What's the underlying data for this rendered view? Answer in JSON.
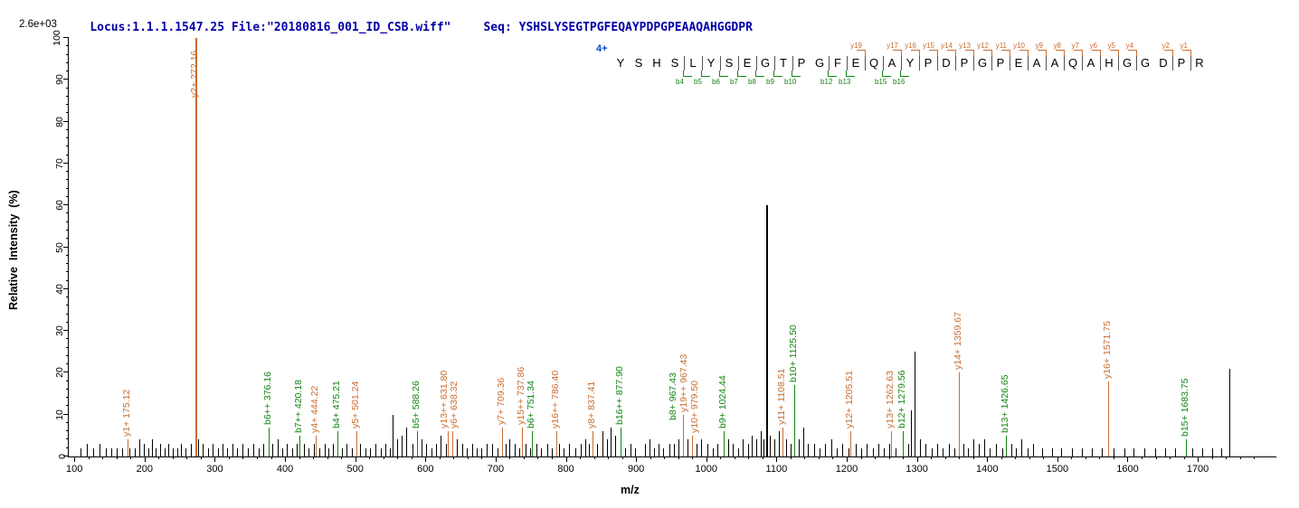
{
  "header": {
    "locus_file": "Locus:1.1.1.1547.25 File:\"20180816_001_ID_CSB.wiff\"",
    "seq_label": "Seq:",
    "sequence": "YSHSLYSEGTPGFEQAYPDPGPEAAQAHGGDPR"
  },
  "chart_data": {
    "type": "bar",
    "xlabel": "m/z",
    "ylabel": "Relative  Intensity  (%)",
    "y_max_label": "2.6e+03",
    "xlim": [
      92,
      1812
    ],
    "ylim": [
      0,
      100
    ],
    "x_ticks": [
      100,
      200,
      300,
      400,
      500,
      600,
      700,
      800,
      900,
      1000,
      1100,
      1200,
      1300,
      1400,
      1500,
      1600,
      1700
    ],
    "y_ticks": [
      0,
      10,
      20,
      30,
      40,
      50,
      60,
      70,
      80,
      90,
      100
    ],
    "colors": {
      "y_ion": "#c86e32",
      "b_ion": "#148514",
      "noise": "#000000",
      "header": "#0000a8",
      "charge": "#0044d0"
    },
    "annotation": {
      "charge": "4+",
      "residues": [
        {
          "aa": "Y"
        },
        {
          "aa": "S"
        },
        {
          "aa": "H"
        },
        {
          "aa": "S",
          "b": "b4"
        },
        {
          "aa": "L",
          "b": "b5"
        },
        {
          "aa": "Y",
          "b": "b6"
        },
        {
          "aa": "S",
          "b": "b7"
        },
        {
          "aa": "E",
          "b": "b8"
        },
        {
          "aa": "G",
          "b": "b9"
        },
        {
          "aa": "T",
          "b": "b10"
        },
        {
          "aa": "P"
        },
        {
          "aa": "G",
          "b": "b12"
        },
        {
          "aa": "F",
          "b": "b13"
        },
        {
          "aa": "E",
          "y": "y19"
        },
        {
          "aa": "Q",
          "b": "b15"
        },
        {
          "aa": "A",
          "b": "b16",
          "y": "y17"
        },
        {
          "aa": "Y",
          "y": "y16"
        },
        {
          "aa": "P",
          "y": "y15"
        },
        {
          "aa": "D",
          "y": "y14"
        },
        {
          "aa": "P",
          "y": "y13"
        },
        {
          "aa": "G",
          "y": "y12"
        },
        {
          "aa": "P",
          "y": "y11"
        },
        {
          "aa": "E",
          "y": "y10"
        },
        {
          "aa": "A",
          "y": "y9"
        },
        {
          "aa": "A",
          "y": "y8"
        },
        {
          "aa": "Q",
          "y": "y7"
        },
        {
          "aa": "A",
          "y": "y6"
        },
        {
          "aa": "H",
          "y": "y5"
        },
        {
          "aa": "G",
          "y": "y4"
        },
        {
          "aa": "G"
        },
        {
          "aa": "D",
          "y": "y2"
        },
        {
          "aa": "P",
          "y": "y1"
        },
        {
          "aa": "R"
        }
      ]
    },
    "labeled_peaks": [
      {
        "ion": "y",
        "label": "y1+ 175.12",
        "mz": 175.12,
        "pct": 4
      },
      {
        "ion": "y",
        "label": "y2+ 272.16",
        "mz": 272.16,
        "pct": 100
      },
      {
        "ion": "b",
        "label": "b6++ 376.16",
        "mz": 376.16,
        "pct": 7
      },
      {
        "ion": "b",
        "label": "b7++ 420.18",
        "mz": 420.18,
        "pct": 5
      },
      {
        "ion": "y",
        "label": "y4+ 444.22",
        "mz": 444.22,
        "pct": 5
      },
      {
        "ion": "b",
        "label": "b4+ 475.21",
        "mz": 475.21,
        "pct": 6
      },
      {
        "ion": "y",
        "label": "y5+ 501.24",
        "mz": 501.24,
        "pct": 6
      },
      {
        "ion": "b",
        "label": "b5+ 588.26",
        "mz": 588.26,
        "pct": 6
      },
      {
        "ion": "y",
        "label": "y13++ 631.80",
        "mz": 631.8,
        "pct": 6,
        "dx": -3
      },
      {
        "ion": "y",
        "label": "y6+ 638.32",
        "mz": 638.32,
        "pct": 6,
        "dx": 3
      },
      {
        "ion": "y",
        "label": "y7+ 709.36",
        "mz": 709.36,
        "pct": 7
      },
      {
        "ion": "y",
        "label": "y15++ 737.86",
        "mz": 737.86,
        "pct": 7
      },
      {
        "ion": "b",
        "label": "b6+ 751.34",
        "mz": 751.34,
        "pct": 6
      },
      {
        "ion": "y",
        "label": "y16++ 786.40",
        "mz": 786.4,
        "pct": 6
      },
      {
        "ion": "y",
        "label": "y8+ 837.41",
        "mz": 837.41,
        "pct": 6
      },
      {
        "ion": "b",
        "label": "b16++ 877.90",
        "mz": 877.9,
        "pct": 7
      },
      {
        "ion": "b",
        "label": "b8+ 967.43",
        "mz": 967.43,
        "pct": 8,
        "dx": -10
      },
      {
        "ion": "y",
        "label": "y19++ 967.43",
        "mz": 967.43,
        "pct": 10,
        "dx": 2
      },
      {
        "ion": "y",
        "label": "y10+ 979.50",
        "mz": 979.5,
        "pct": 5,
        "dx": 4
      },
      {
        "ion": "b",
        "label": "b9+ 1024.44",
        "mz": 1024.44,
        "pct": 6
      },
      {
        "ion": "y",
        "label": "y11+ 1108.51",
        "mz": 1108.51,
        "pct": 7
      },
      {
        "ion": "b",
        "label": "b10+ 1125.50",
        "mz": 1125.5,
        "pct": 17
      },
      {
        "ion": "y",
        "label": "y12+ 1205.51",
        "mz": 1205.51,
        "pct": 6
      },
      {
        "ion": "y",
        "label": "y13+ 1262.63",
        "mz": 1262.63,
        "pct": 6
      },
      {
        "ion": "b",
        "label": "b12+ 1279.56",
        "mz": 1279.56,
        "pct": 6
      },
      {
        "ion": "y",
        "label": "y14+ 1359.67",
        "mz": 1359.67,
        "pct": 20
      },
      {
        "ion": "b",
        "label": "b13+ 1426.65",
        "mz": 1426.65,
        "pct": 5
      },
      {
        "ion": "y",
        "label": "y16+ 1571.75",
        "mz": 1571.75,
        "pct": 18
      },
      {
        "ion": "b",
        "label": "b15+ 1683.75",
        "mz": 1683.75,
        "pct": 4
      }
    ],
    "noise_peaks": [
      [
        109,
        2
      ],
      [
        118,
        3
      ],
      [
        127,
        2
      ],
      [
        136,
        3
      ],
      [
        145,
        2
      ],
      [
        152,
        2
      ],
      [
        160,
        2
      ],
      [
        168,
        2
      ],
      [
        178,
        2
      ],
      [
        186,
        2
      ],
      [
        193,
        4
      ],
      [
        199,
        3
      ],
      [
        205,
        2
      ],
      [
        211,
        4
      ],
      [
        216,
        2
      ],
      [
        222,
        3
      ],
      [
        228,
        2
      ],
      [
        234,
        3
      ],
      [
        240,
        2
      ],
      [
        246,
        2
      ],
      [
        252,
        3
      ],
      [
        258,
        2
      ],
      [
        266,
        3
      ],
      [
        276,
        4
      ],
      [
        283,
        3
      ],
      [
        290,
        2
      ],
      [
        297,
        3
      ],
      [
        304,
        2
      ],
      [
        311,
        3
      ],
      [
        318,
        2
      ],
      [
        325,
        3
      ],
      [
        332,
        2
      ],
      [
        339,
        3
      ],
      [
        347,
        2
      ],
      [
        355,
        3
      ],
      [
        362,
        2
      ],
      [
        369,
        3
      ],
      [
        382,
        3
      ],
      [
        389,
        4
      ],
      [
        396,
        2
      ],
      [
        403,
        3
      ],
      [
        410,
        2
      ],
      [
        417,
        3
      ],
      [
        427,
        3
      ],
      [
        434,
        2
      ],
      [
        441,
        3
      ],
      [
        449,
        2
      ],
      [
        456,
        3
      ],
      [
        462,
        2
      ],
      [
        468,
        3
      ],
      [
        481,
        2
      ],
      [
        488,
        3
      ],
      [
        495,
        2
      ],
      [
        507,
        3
      ],
      [
        514,
        2
      ],
      [
        521,
        2
      ],
      [
        529,
        3
      ],
      [
        536,
        2
      ],
      [
        543,
        3
      ],
      [
        549,
        2
      ],
      [
        553,
        10
      ],
      [
        560,
        4
      ],
      [
        566,
        5
      ],
      [
        572,
        7
      ],
      [
        581,
        3
      ],
      [
        594,
        4
      ],
      [
        601,
        3
      ],
      [
        608,
        2
      ],
      [
        615,
        3
      ],
      [
        622,
        5
      ],
      [
        629,
        3
      ],
      [
        645,
        4
      ],
      [
        652,
        3
      ],
      [
        659,
        2
      ],
      [
        666,
        3
      ],
      [
        673,
        2
      ],
      [
        680,
        2
      ],
      [
        687,
        3
      ],
      [
        695,
        3
      ],
      [
        703,
        2
      ],
      [
        714,
        3
      ],
      [
        720,
        4
      ],
      [
        727,
        3
      ],
      [
        733,
        2
      ],
      [
        743,
        3
      ],
      [
        749,
        2
      ],
      [
        758,
        3
      ],
      [
        765,
        2
      ],
      [
        773,
        3
      ],
      [
        780,
        2
      ],
      [
        790,
        3
      ],
      [
        797,
        2
      ],
      [
        805,
        3
      ],
      [
        813,
        2
      ],
      [
        821,
        3
      ],
      [
        828,
        4
      ],
      [
        833,
        3
      ],
      [
        845,
        3
      ],
      [
        852,
        6
      ],
      [
        858,
        4
      ],
      [
        864,
        7
      ],
      [
        870,
        5
      ],
      [
        878,
        3
      ],
      [
        885,
        2
      ],
      [
        892,
        3
      ],
      [
        899,
        2
      ],
      [
        913,
        3
      ],
      [
        919,
        4
      ],
      [
        926,
        2
      ],
      [
        932,
        3
      ],
      [
        939,
        2
      ],
      [
        947,
        3
      ],
      [
        954,
        3
      ],
      [
        960,
        4
      ],
      [
        973,
        4
      ],
      [
        986,
        3
      ],
      [
        993,
        4
      ],
      [
        1001,
        3
      ],
      [
        1009,
        2
      ],
      [
        1016,
        3
      ],
      [
        1031,
        4
      ],
      [
        1038,
        3
      ],
      [
        1045,
        2
      ],
      [
        1052,
        4
      ],
      [
        1059,
        3
      ],
      [
        1065,
        5
      ],
      [
        1071,
        4
      ],
      [
        1077,
        6
      ],
      [
        1081,
        4
      ],
      [
        1085,
        60
      ],
      [
        1091,
        5
      ],
      [
        1097,
        4
      ],
      [
        1103,
        6
      ],
      [
        1114,
        4
      ],
      [
        1120,
        3
      ],
      [
        1132,
        4
      ],
      [
        1138,
        7
      ],
      [
        1145,
        3
      ],
      [
        1153,
        3
      ],
      [
        1161,
        2
      ],
      [
        1169,
        3
      ],
      [
        1178,
        4
      ],
      [
        1186,
        2
      ],
      [
        1194,
        3
      ],
      [
        1202,
        2
      ],
      [
        1213,
        3
      ],
      [
        1221,
        2
      ],
      [
        1229,
        3
      ],
      [
        1237,
        2
      ],
      [
        1245,
        3
      ],
      [
        1253,
        2
      ],
      [
        1261,
        3
      ],
      [
        1270,
        2
      ],
      [
        1287,
        3
      ],
      [
        1291,
        11
      ],
      [
        1297,
        25
      ],
      [
        1305,
        4
      ],
      [
        1312,
        3
      ],
      [
        1321,
        2
      ],
      [
        1329,
        3
      ],
      [
        1337,
        2
      ],
      [
        1345,
        3
      ],
      [
        1353,
        2
      ],
      [
        1366,
        3
      ],
      [
        1373,
        2
      ],
      [
        1381,
        4
      ],
      [
        1388,
        3
      ],
      [
        1396,
        4
      ],
      [
        1404,
        2
      ],
      [
        1412,
        3
      ],
      [
        1421,
        2
      ],
      [
        1434,
        3
      ],
      [
        1441,
        2
      ],
      [
        1449,
        4
      ],
      [
        1458,
        2
      ],
      [
        1465,
        3
      ],
      [
        1478,
        2
      ],
      [
        1492,
        2
      ],
      [
        1506,
        2
      ],
      [
        1521,
        2
      ],
      [
        1535,
        2
      ],
      [
        1549,
        2
      ],
      [
        1563,
        2
      ],
      [
        1580,
        2
      ],
      [
        1595,
        2
      ],
      [
        1609,
        2
      ],
      [
        1624,
        2
      ],
      [
        1639,
        2
      ],
      [
        1654,
        2
      ],
      [
        1668,
        2
      ],
      [
        1692,
        2
      ],
      [
        1706,
        2
      ],
      [
        1720,
        2
      ],
      [
        1733,
        2
      ],
      [
        1745,
        21
      ]
    ]
  }
}
